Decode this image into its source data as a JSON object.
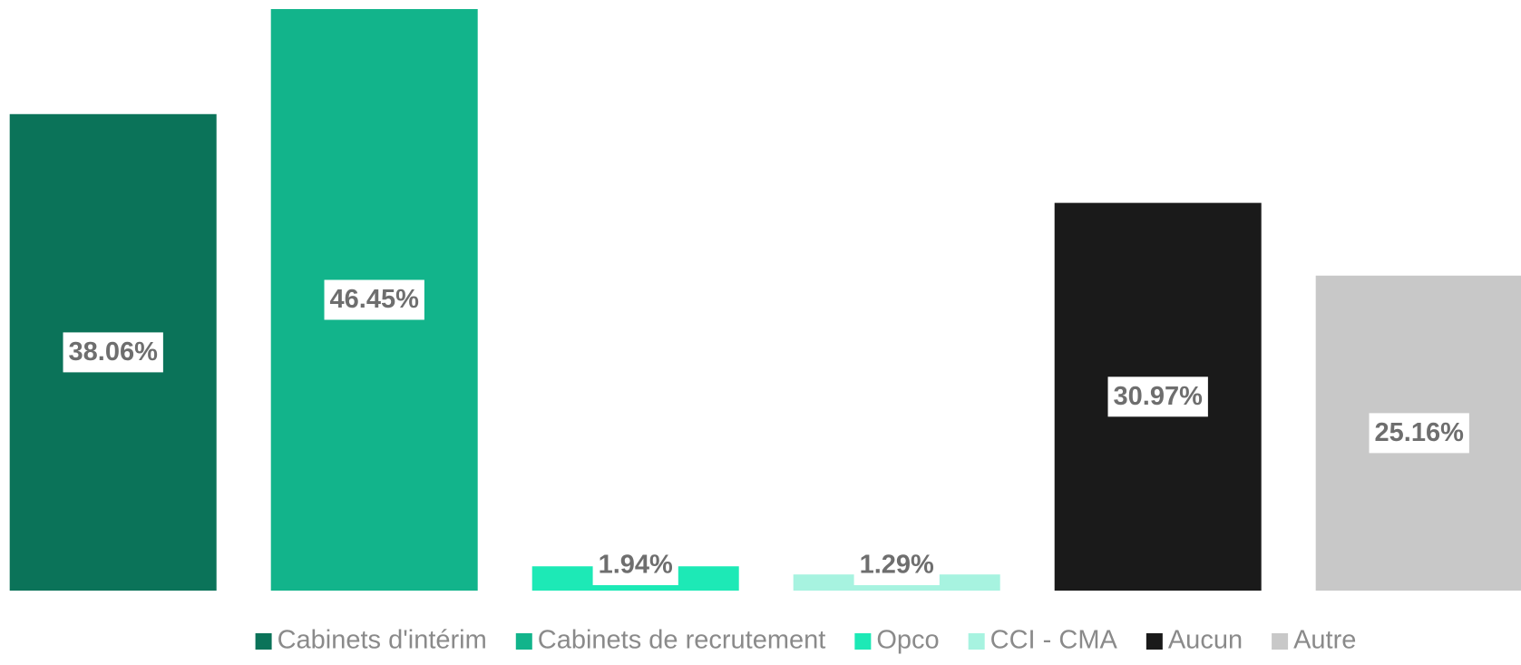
{
  "chart_data": {
    "type": "bar",
    "categories": [
      "Cabinets d'intérim",
      "Cabinets de recrutement",
      "Opco",
      "CCI - CMA",
      "Aucun",
      "Autre"
    ],
    "values": [
      38.06,
      46.45,
      1.94,
      1.29,
      30.97,
      25.16
    ],
    "value_labels": [
      "38.06%",
      "46.45%",
      "1.94%",
      "1.29%",
      "30.97%",
      "25.16%"
    ],
    "colors": [
      "#0b7359",
      "#12b48b",
      "#1de9b6",
      "#a7f3e0",
      "#1a1a1a",
      "#c8c8c8"
    ],
    "legend": "bottom"
  }
}
